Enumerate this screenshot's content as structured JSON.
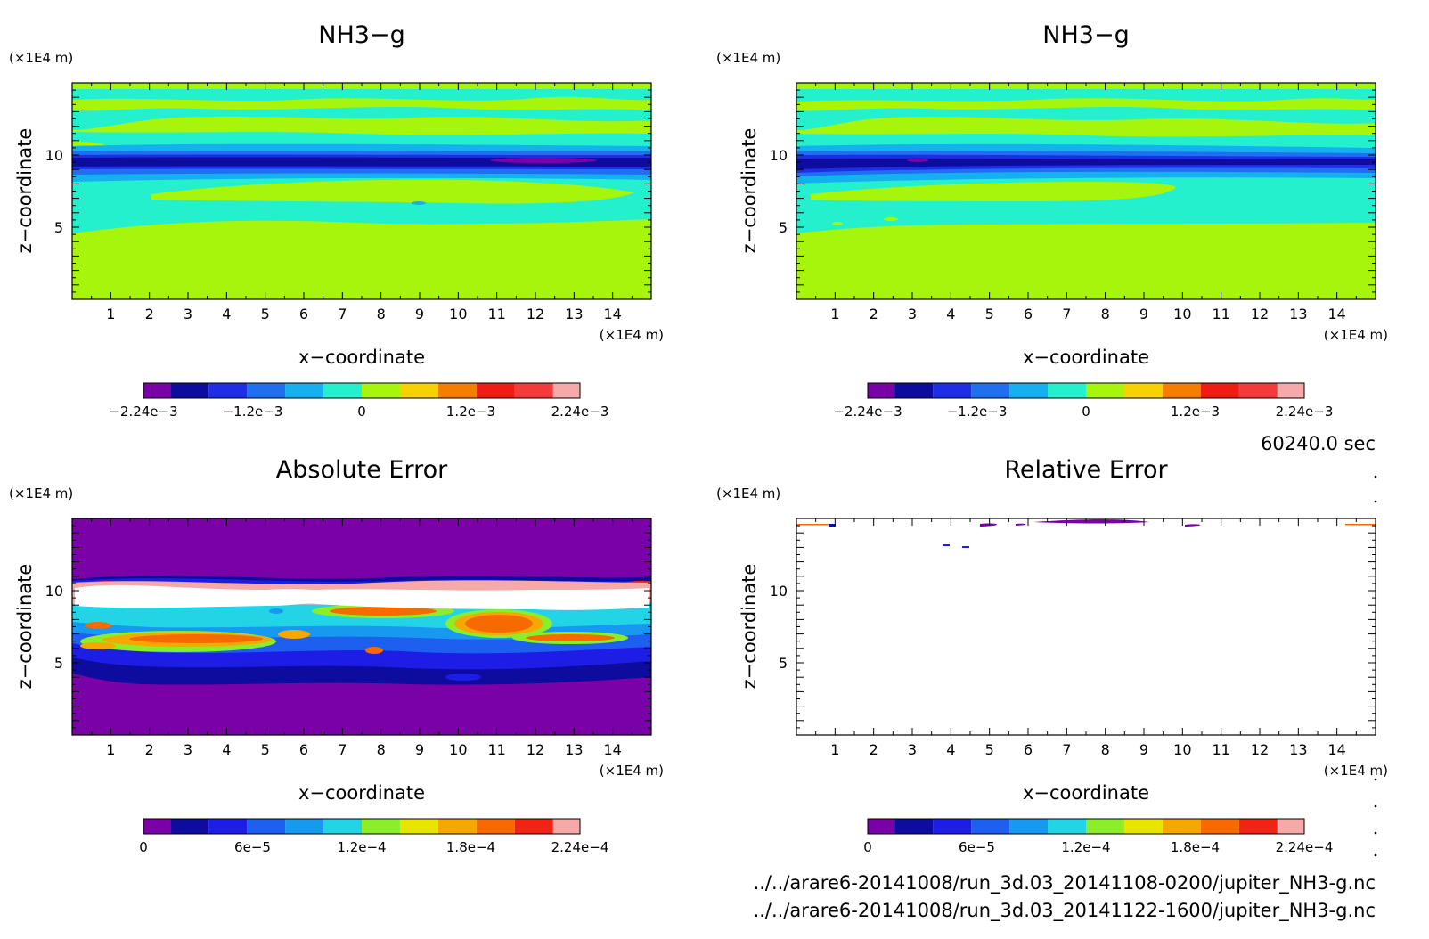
{
  "time_text": "60240.0 sec",
  "unit_label": "(×1E4 m)",
  "files": [
    "../../arare6-20141008/run_3d.03_20141108-0200/jupiter_NH3-g.nc",
    "../../arare6-20141008/run_3d.03_20141122-1600/jupiter_NH3-g.nc"
  ],
  "colors": {
    "diverging": [
      "#7a00a8",
      "#0d0c9e",
      "#1e2ee6",
      "#1f6ff0",
      "#15b0f0",
      "#25f0cd",
      "#a6f50a",
      "#f7d100",
      "#f77d00",
      "#f01c12",
      "#f43a3a",
      "#f5a9a9"
    ],
    "sequential": [
      "#7a00a8",
      "#0d0c9e",
      "#1d1de6",
      "#1f5ff0",
      "#1799f0",
      "#23d3e6",
      "#8cee2b",
      "#e8e600",
      "#f7a800",
      "#f76a00",
      "#f02414",
      "#f5a9a9"
    ]
  },
  "chart_data": [
    {
      "type": "heatmap",
      "title": "NH3−g",
      "xlabel": "x−coordinate",
      "ylabel": "z−coordinate",
      "xlim": [
        0,
        15
      ],
      "ylim": [
        0,
        15
      ],
      "xticks": [
        "1",
        "2",
        "3",
        "4",
        "5",
        "6",
        "7",
        "8",
        "9",
        "10",
        "11",
        "12",
        "13",
        "14"
      ],
      "yticks": [
        "5",
        "10"
      ],
      "colorbar": {
        "range": [
          -0.00224,
          0.00224
        ],
        "labels": [
          "−2.24e−3",
          "−1.2e−3",
          "0",
          "1.2e−3",
          "2.24e−3"
        ]
      }
    },
    {
      "type": "heatmap",
      "title": "NH3−g",
      "xlabel": "x−coordinate",
      "ylabel": "z−coordinate",
      "xlim": [
        0,
        15
      ],
      "ylim": [
        0,
        15
      ],
      "xticks": [
        "1",
        "2",
        "3",
        "4",
        "5",
        "6",
        "7",
        "8",
        "9",
        "10",
        "11",
        "12",
        "13",
        "14"
      ],
      "yticks": [
        "5",
        "10"
      ],
      "colorbar": {
        "range": [
          -0.00224,
          0.00224
        ],
        "labels": [
          "−2.24e−3",
          "−1.2e−3",
          "0",
          "1.2e−3",
          "2.24e−3"
        ]
      }
    },
    {
      "type": "heatmap",
      "title": "Absolute Error",
      "xlabel": "x−coordinate",
      "ylabel": "z−coordinate",
      "xlim": [
        0,
        15
      ],
      "ylim": [
        0,
        15
      ],
      "xticks": [
        "1",
        "2",
        "3",
        "4",
        "5",
        "6",
        "7",
        "8",
        "9",
        "10",
        "11",
        "12",
        "13",
        "14"
      ],
      "yticks": [
        "5",
        "10"
      ],
      "colorbar": {
        "range": [
          0,
          0.000224
        ],
        "labels": [
          "0",
          "6e−5",
          "1.2e−4",
          "1.8e−4",
          "2.24e−4"
        ]
      }
    },
    {
      "type": "heatmap",
      "title": "Relative Error",
      "xlabel": "x−coordinate",
      "ylabel": "z−coordinate",
      "xlim": [
        0,
        15
      ],
      "ylim": [
        0,
        15
      ],
      "xticks": [
        "1",
        "2",
        "3",
        "4",
        "5",
        "6",
        "7",
        "8",
        "9",
        "10",
        "11",
        "12",
        "13",
        "14"
      ],
      "yticks": [
        "5",
        "10"
      ],
      "colorbar": {
        "range": [
          0,
          0.000224
        ],
        "labels": [
          "0",
          "6e−5",
          "1.2e−4",
          "1.8e−4",
          "2.24e−4"
        ]
      }
    }
  ]
}
